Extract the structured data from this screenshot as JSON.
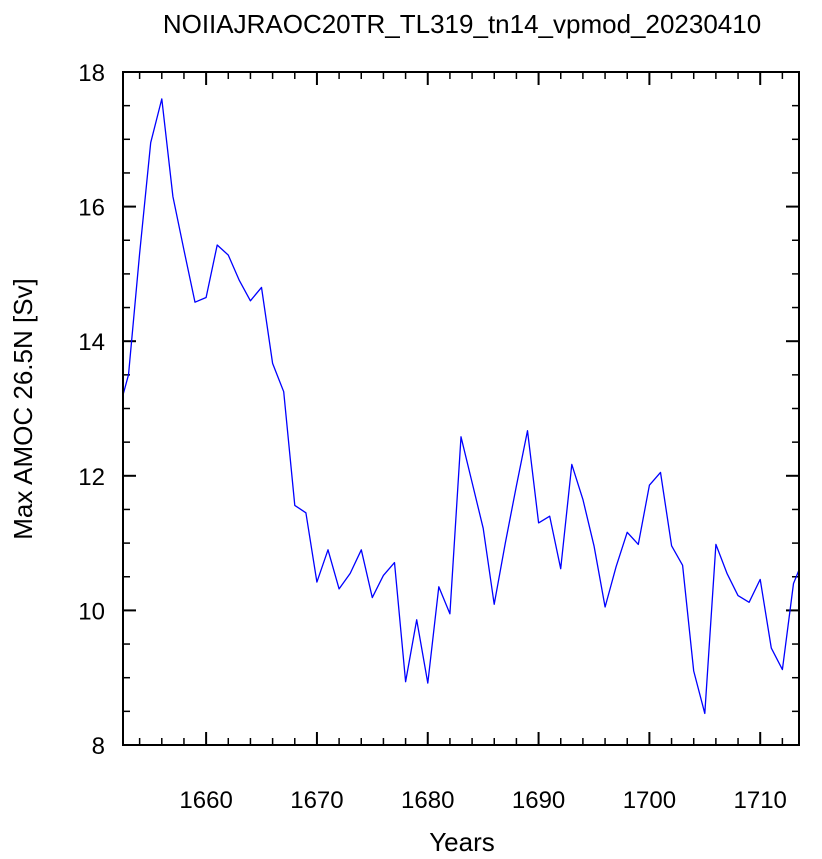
{
  "chart_data": {
    "type": "line",
    "title": "NOIIAJRAOC20TR_TL319_tn14_vpmod_20230410",
    "xlabel": "Years",
    "ylabel": "Max AMOC 26.5N [Sv]",
    "xlim": [
      1652.5,
      1713.5
    ],
    "ylim": [
      8,
      18
    ],
    "x_ticks": [
      1660,
      1670,
      1680,
      1690,
      1700,
      1710
    ],
    "y_ticks": [
      8,
      10,
      12,
      14,
      16,
      18
    ],
    "x_minor_step": 2,
    "y_minor_step": 0.5,
    "grid": false,
    "legend": "none",
    "series": [
      {
        "color": "#0000ff",
        "x": [
          1652.5,
          1653,
          1654,
          1655,
          1656,
          1657,
          1658,
          1659,
          1660,
          1661,
          1662,
          1663,
          1664,
          1665,
          1666,
          1667,
          1668,
          1669,
          1670,
          1671,
          1672,
          1673,
          1674,
          1675,
          1676,
          1677,
          1678,
          1679,
          1680,
          1681,
          1682,
          1683,
          1684,
          1685,
          1686,
          1687,
          1688,
          1689,
          1690,
          1691,
          1692,
          1693,
          1694,
          1695,
          1696,
          1697,
          1698,
          1699,
          1700,
          1701,
          1702,
          1703,
          1704,
          1705,
          1706,
          1707,
          1708,
          1709,
          1710,
          1711,
          1712,
          1713,
          1713.5
        ],
        "y": [
          13.2,
          13.5,
          15.3,
          16.95,
          17.6,
          16.15,
          15.35,
          14.58,
          14.65,
          15.43,
          15.28,
          14.9,
          14.6,
          14.8,
          13.67,
          13.25,
          11.56,
          11.45,
          10.42,
          10.9,
          10.32,
          10.55,
          10.9,
          10.19,
          10.52,
          10.71,
          8.94,
          9.86,
          8.92,
          10.35,
          9.95,
          12.58,
          11.9,
          11.22,
          10.09,
          11.0,
          11.85,
          12.67,
          11.3,
          11.4,
          10.62,
          12.17,
          11.65,
          10.96,
          10.05,
          10.65,
          11.16,
          10.98,
          11.86,
          12.05,
          10.96,
          10.67,
          9.1,
          8.47,
          10.98,
          10.55,
          10.22,
          10.12,
          10.46,
          9.44,
          9.12,
          10.4,
          10.6
        ]
      }
    ]
  }
}
